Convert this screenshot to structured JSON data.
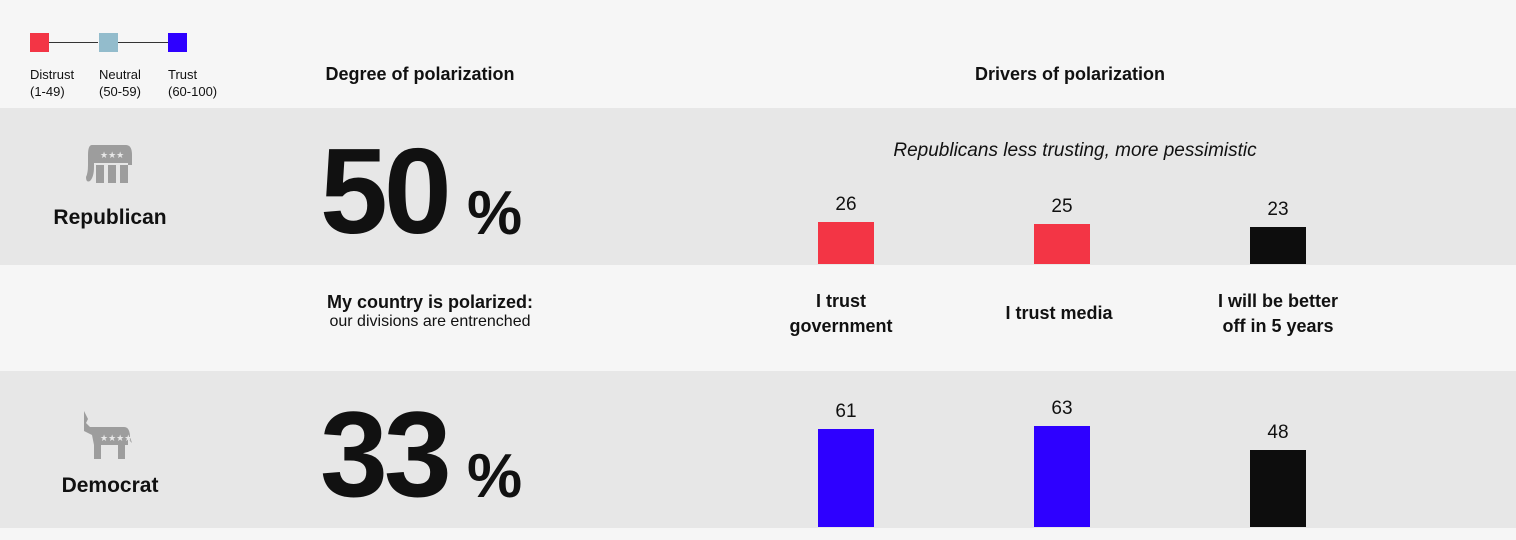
{
  "legend": [
    {
      "name": "Distrust",
      "range": "(1-49)",
      "color": "#f33545"
    },
    {
      "name": "Neutral",
      "range": "(50-59)",
      "color": "#93bccc"
    },
    {
      "name": "Trust",
      "range": "(60-100)",
      "color": "#2e00ff"
    }
  ],
  "headers": {
    "degree": "Degree of polarization",
    "drivers": "Drivers of polarization"
  },
  "statement": {
    "bold": "My country is polarized:",
    "normal": "our divisions are entrenched"
  },
  "parties": [
    {
      "name": "Republican",
      "icon": "elephant-icon",
      "polarization": "50",
      "pct": "%",
      "subtitle": "Republicans less trusting, more pessimistic"
    },
    {
      "name": "Democrat",
      "icon": "donkey-icon",
      "polarization": "33",
      "pct": "%",
      "subtitle": ""
    }
  ],
  "chart_data": {
    "type": "bar",
    "categories": [
      "I trust government",
      "I trust media",
      "I will be better off in 5 years"
    ],
    "category_lines": [
      [
        "I trust",
        "government"
      ],
      [
        "I trust media"
      ],
      [
        "I will be better",
        "off in 5 years"
      ]
    ],
    "series": [
      {
        "name": "Republican",
        "values": [
          26,
          25,
          23
        ],
        "colors": [
          "#f33545",
          "#f33545",
          "#0d0d0d"
        ]
      },
      {
        "name": "Democrat",
        "values": [
          61,
          63,
          48
        ],
        "colors": [
          "#2e00ff",
          "#2e00ff",
          "#0d0d0d"
        ]
      }
    ],
    "ylim": [
      0,
      100
    ]
  }
}
